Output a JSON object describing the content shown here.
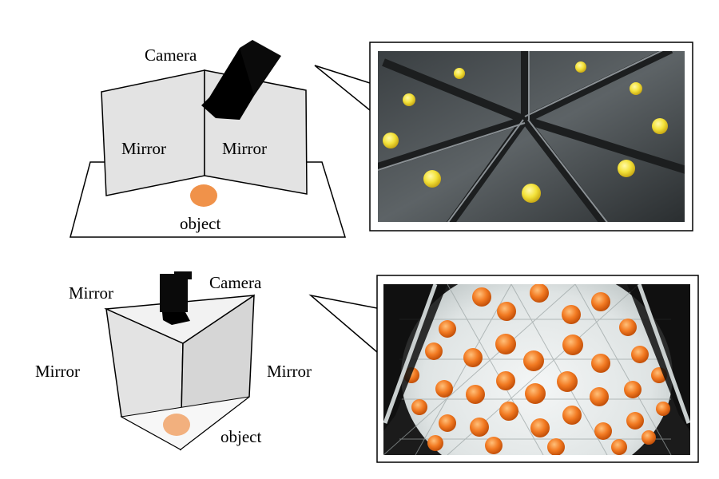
{
  "top_diagram": {
    "camera_label": "Camera",
    "mirror_left_label": "Mirror",
    "mirror_right_label": "Mirror",
    "object_label": "object"
  },
  "bottom_diagram": {
    "camera_label": "Camera",
    "mirror_top_label": "Mirror",
    "mirror_left_label": "Mirror",
    "mirror_right_label": "Mirror",
    "object_label": "object"
  },
  "colors": {
    "mirror_fill": "#e3e3e3",
    "object_orange": "#f0924a",
    "ball_yellow": "#f3e23a",
    "ball_orange": "#f27a22",
    "camera_black": "#0a0a0a"
  },
  "icons": {
    "camera": "camera-body-icon",
    "object": "object-disk-icon"
  }
}
